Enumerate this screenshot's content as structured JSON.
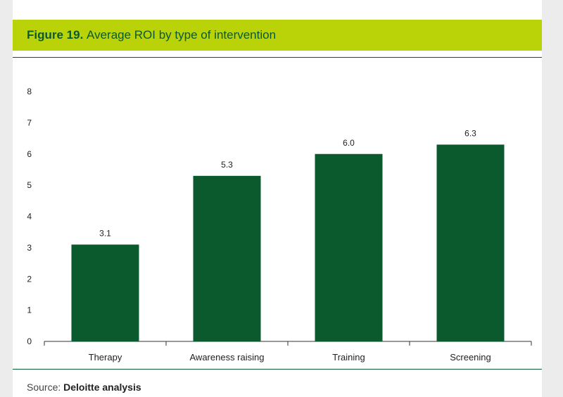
{
  "figure": {
    "label": "Figure 19.",
    "title": "Average ROI by type of intervention"
  },
  "source": {
    "label": "Source:",
    "value": "Deloitte analysis"
  },
  "colors": {
    "bar": "#0b5a2e",
    "title_bar": "#b9d308",
    "title_text": "#0b5a2e"
  },
  "chart_data": {
    "type": "bar",
    "title": "Average ROI by type of intervention",
    "categories": [
      "Therapy",
      "Awareness raising",
      "Training",
      "Screening"
    ],
    "values": [
      3.1,
      5.3,
      6.0,
      6.3
    ],
    "value_labels": [
      "3.1",
      "5.3",
      "6.0",
      "6.3"
    ],
    "xlabel": "",
    "ylabel": "",
    "ylim": [
      0,
      8
    ],
    "yticks": [
      0,
      1,
      2,
      3,
      4,
      5,
      6,
      7,
      8
    ],
    "grid": false,
    "legend": "none"
  }
}
